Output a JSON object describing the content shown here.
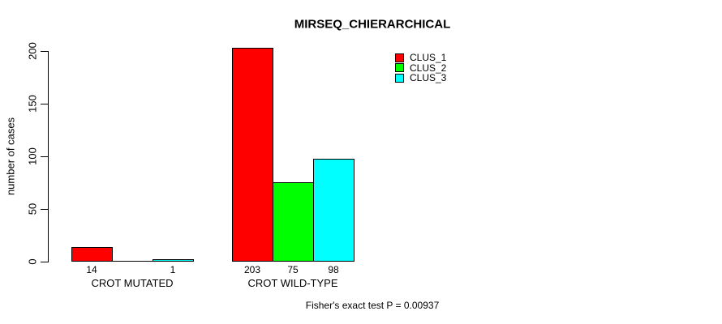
{
  "chart_data": {
    "type": "bar",
    "title": "MIRSEQ_CHIERARCHICAL",
    "xlabel": "",
    "ylabel": "number of cases",
    "categories": [
      "CROT MUTATED",
      "CROT WILD-TYPE"
    ],
    "series": [
      {
        "name": "CLUS_1",
        "color": "#ff0000",
        "values": [
          14,
          203
        ]
      },
      {
        "name": "CLUS_2",
        "color": "#00ff00",
        "values": [
          0,
          75
        ]
      },
      {
        "name": "CLUS_3",
        "color": "#00ffff",
        "values": [
          1,
          98
        ]
      }
    ],
    "bar_value_labels": [
      [
        "14",
        "",
        "1"
      ],
      [
        "203",
        "75",
        "98"
      ]
    ],
    "ylim": [
      0,
      200
    ],
    "yticks": [
      0,
      50,
      100,
      150,
      200
    ],
    "grid": false,
    "legend_position": "top-right",
    "bar_border_color": "#000000",
    "annotation": "Fisher's exact test P = 0.00937"
  }
}
